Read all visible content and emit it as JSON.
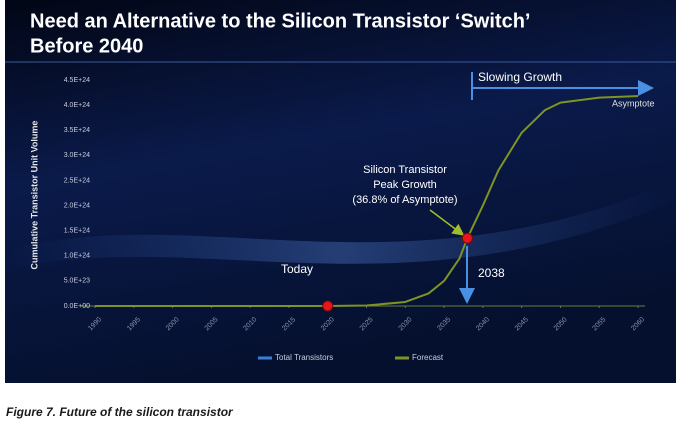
{
  "title": [
    "Need an Alternative to the Silicon Transistor ‘Switch’",
    "Before 2040"
  ],
  "caption": "Figure 7. Future of the silicon transistor",
  "chart_data": {
    "type": "line",
    "ylabel": "Cumulative Transistor Unit Volume",
    "x": [
      1990,
      1995,
      2000,
      2005,
      2010,
      2015,
      2020,
      2025,
      2030,
      2033,
      2035,
      2037,
      2038,
      2040,
      2042,
      2045,
      2048,
      2050,
      2055,
      2060
    ],
    "series": [
      {
        "name": "Total Transistors",
        "color": "#3c7ddc",
        "values": [
          0,
          0,
          0,
          0,
          0,
          0,
          0,
          null,
          null,
          null,
          null,
          null,
          null,
          null,
          null,
          null,
          null,
          null,
          null,
          null
        ]
      },
      {
        "name": "Forecast",
        "color": "#7e9322",
        "values": [
          0,
          0,
          0,
          0,
          0,
          0,
          0,
          1e+22,
          8e+22,
          2.5e+23,
          5e+23,
          9.5e+23,
          1.35e+24,
          2e+24,
          2.7e+24,
          3.45e+24,
          3.9e+24,
          4.05e+24,
          4.15e+24,
          4.18e+24
        ]
      }
    ],
    "xlim": [
      1990,
      2060
    ],
    "xticks": [
      1990,
      1995,
      2000,
      2005,
      2010,
      2015,
      2020,
      2025,
      2030,
      2035,
      2040,
      2045,
      2050,
      2055,
      2060
    ],
    "ylim": [
      0,
      4.5e+24
    ],
    "yticks": [
      {
        "value": 0,
        "label": "0.0E+00"
      },
      {
        "value": 5e+23,
        "label": "5.0E+23"
      },
      {
        "value": 1e+24,
        "label": "1.0E+24"
      },
      {
        "value": 1.5e+24,
        "label": "1.5E+24"
      },
      {
        "value": 2e+24,
        "label": "2.0E+24"
      },
      {
        "value": 2.5e+24,
        "label": "2.5E+24"
      },
      {
        "value": 3e+24,
        "label": "3.0E+24"
      },
      {
        "value": 3.5e+24,
        "label": "3.5E+24"
      },
      {
        "value": 4e+24,
        "label": "4.0E+24"
      },
      {
        "value": 4.5e+24,
        "label": "4.5E+24"
      }
    ],
    "markers": [
      {
        "x": 2020,
        "y": 0,
        "color": "#e8151b",
        "label": [
          "Today"
        ]
      },
      {
        "x": 2038,
        "y": 1.35e+24,
        "color": "#e8151b",
        "label": [
          "Silicon Transistor",
          "Peak Growth",
          "(36.8% of Asymptote)"
        ]
      }
    ],
    "annotations": [
      "2038",
      "Slowing Growth",
      "Asymptote"
    ],
    "legend": "bottom"
  }
}
